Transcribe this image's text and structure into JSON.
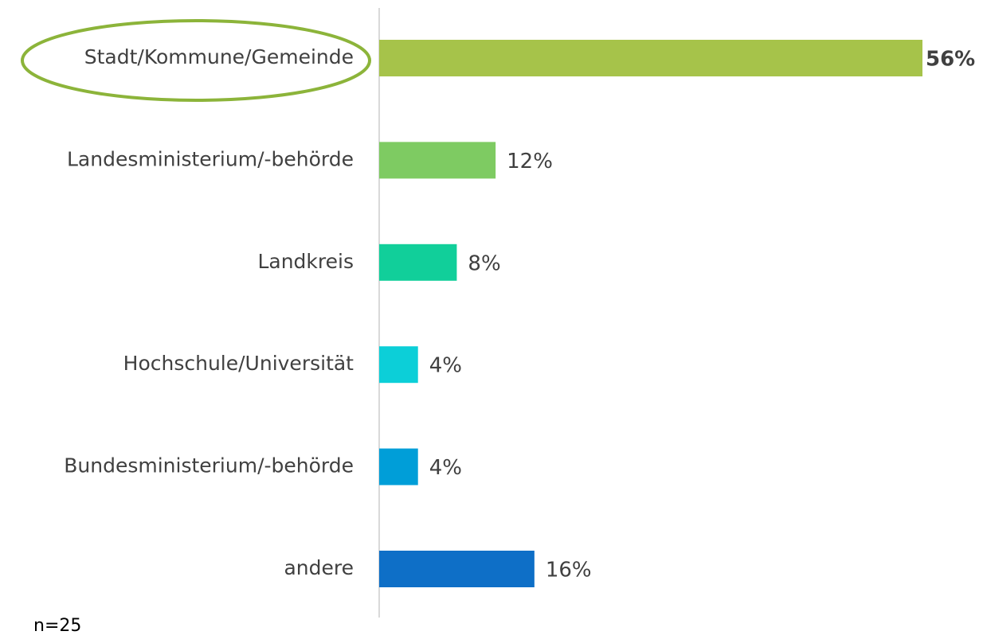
{
  "chart_data": {
    "type": "bar",
    "orientation": "horizontal",
    "categories": [
      "Stadt/Kommune/Gemeinde",
      "Landesministerium/-behörde",
      "Landkreis",
      "Hochschule/Universität",
      "Bundesministerium/-behörde",
      "andere"
    ],
    "values": [
      56,
      12,
      8,
      4,
      4,
      16
    ],
    "value_labels": [
      "56%",
      "12%",
      "8%",
      "4%",
      "4%",
      "16%"
    ],
    "colors": [
      "#a6c34a",
      "#7ecb62",
      "#11cf9a",
      "#0ccfd8",
      "#009ed8",
      "#0e6fc7"
    ],
    "note": "n=25"
  }
}
